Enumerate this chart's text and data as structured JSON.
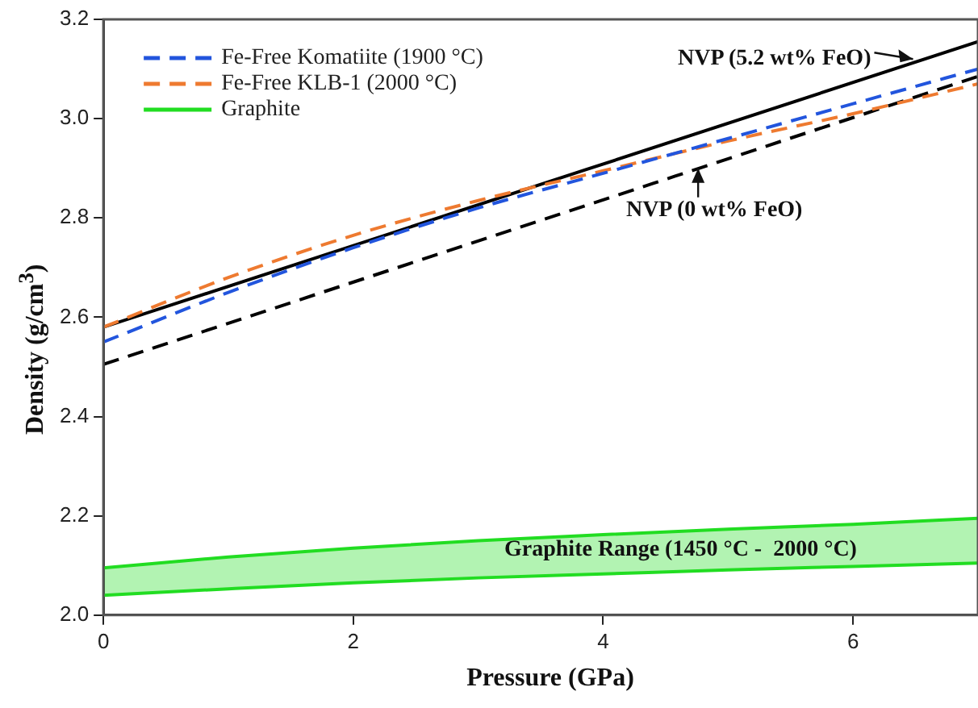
{
  "chart_data": {
    "type": "line",
    "xlabel": "Pressure (GPa)",
    "ylabel": "Density (g/cm$^{3}$)",
    "xlim": [
      0,
      7
    ],
    "xticks": [
      0,
      2,
      4,
      6
    ],
    "ylim": [
      2.0,
      3.2
    ],
    "yticks": [
      {
        "value": 2,
        "label": "2.0"
      },
      2.2,
      2.4,
      2.6,
      2.8,
      {
        "value": 3,
        "label": "3.0"
      },
      3.2
    ],
    "grid": false,
    "legend": "top left",
    "marker": "none",
    "series": [
      {
        "name": "Fe-Free Komatiite (1900 °C)",
        "color": "#2255dd",
        "line_style": "dashed",
        "x": [
          0,
          1,
          2,
          3,
          4,
          5,
          6,
          7
        ],
        "values": [
          2.55,
          2.65,
          2.74,
          2.82,
          2.89,
          2.96,
          3.03,
          3.1
        ]
      },
      {
        "name": "Fe-Free KLB-1 (2000 °C)",
        "color": "#ee7a30",
        "line_style": "dashed",
        "x": [
          0,
          1,
          2,
          3,
          4,
          5,
          6,
          7
        ],
        "values": [
          2.58,
          2.68,
          2.765,
          2.835,
          2.895,
          2.955,
          3.01,
          3.07
        ]
      },
      {
        "name": "Graphite",
        "color": "#22dd22",
        "line_style": "solid",
        "x": [
          0,
          1,
          2,
          3,
          4,
          5,
          6,
          7
        ],
        "values": [
          2.095,
          2.117,
          2.135,
          2.15,
          2.162,
          2.173,
          2.183,
          2.195
        ],
        "lower": [
          2.04,
          2.053,
          2.065,
          2.075,
          2.083,
          2.091,
          2.098,
          2.105
        ],
        "upper": [
          2.095,
          2.117,
          2.135,
          2.15,
          2.162,
          2.173,
          2.183,
          2.195
        ]
      },
      {
        "color": "#22dd22",
        "line_style": "solid",
        "x": [
          0,
          1,
          2,
          3,
          4,
          5,
          6,
          7
        ],
        "values": [
          2.04,
          2.053,
          2.065,
          2.075,
          2.083,
          2.091,
          2.098,
          2.105
        ]
      },
      {
        "color": "#000000",
        "line_style": "solid",
        "x": [
          0,
          7
        ],
        "values": [
          2.58,
          3.155
        ]
      },
      {
        "color": "#000000",
        "line_style": "dashed",
        "x": [
          0,
          7
        ],
        "values": [
          2.505,
          3.085
        ]
      }
    ],
    "annotations": [
      {
        "text": "NVP (5.2 wt% FeO)",
        "x": 6.48,
        "y": 3.12
      },
      {
        "text": "NVP (0 wt% FeO)",
        "x": 4.76,
        "y": 2.9
      },
      "Graphite Range (1450 °C -  2000 °C)"
    ]
  }
}
